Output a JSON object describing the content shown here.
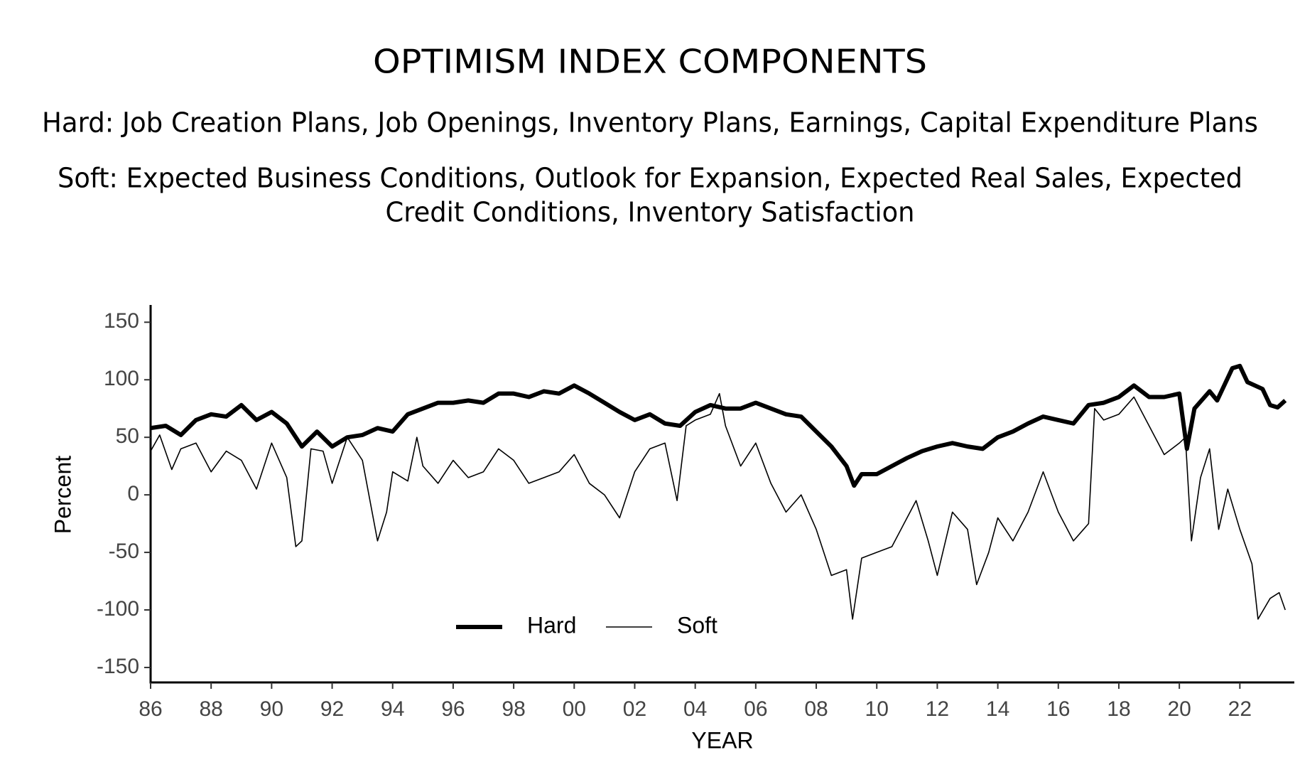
{
  "chart_data": {
    "type": "line",
    "title": "OPTIMISM INDEX COMPONENTS",
    "subtitle": [
      "Hard: Job Creation Plans, Job Openings, Inventory Plans, Earnings, Capital Expenditure Plans",
      "Soft: Expected Business Conditions, Outlook for Expansion, Expected Real Sales, Expected",
      "Credit Conditions, Inventory Satisfaction"
    ],
    "xlabel": "YEAR",
    "ylabel": "Percent",
    "xlim": [
      1986,
      2023.8
    ],
    "ylim": [
      -163,
      165
    ],
    "xticks": [
      {
        "value": 1986,
        "label": "86"
      },
      {
        "value": 1988,
        "label": "88"
      },
      {
        "value": 1990,
        "label": "90"
      },
      {
        "value": 1992,
        "label": "92"
      },
      {
        "value": 1994,
        "label": "94"
      },
      {
        "value": 1996,
        "label": "96"
      },
      {
        "value": 1998,
        "label": "98"
      },
      {
        "value": 2000,
        "label": "00"
      },
      {
        "value": 2002,
        "label": "02"
      },
      {
        "value": 2004,
        "label": "04"
      },
      {
        "value": 2006,
        "label": "06"
      },
      {
        "value": 2008,
        "label": "08"
      },
      {
        "value": 2010,
        "label": "10"
      },
      {
        "value": 2012,
        "label": "12"
      },
      {
        "value": 2014,
        "label": "14"
      },
      {
        "value": 2016,
        "label": "16"
      },
      {
        "value": 2018,
        "label": "18"
      },
      {
        "value": 2020,
        "label": "20"
      },
      {
        "value": 2022,
        "label": "22"
      }
    ],
    "yticks": [
      150,
      100,
      50,
      0,
      -50,
      -100,
      -150
    ],
    "grid": false,
    "legend": "lower center",
    "series": [
      {
        "name": "Hard",
        "color": "#000000",
        "x": [
          1986,
          1986.5,
          1987,
          1987.5,
          1988,
          1988.5,
          1989,
          1989.5,
          1990,
          1990.5,
          1991,
          1991.5,
          1992,
          1992.5,
          1993,
          1993.5,
          1994,
          1994.5,
          1995,
          1995.5,
          1996,
          1996.5,
          1997,
          1997.5,
          1998,
          1998.5,
          1999,
          1999.5,
          2000,
          2000.5,
          2001,
          2001.5,
          2002,
          2002.5,
          2003,
          2003.5,
          2004,
          2004.5,
          2005,
          2005.5,
          2006,
          2006.5,
          2007,
          2007.5,
          2008,
          2008.5,
          2009,
          2009.25,
          2009.5,
          2010,
          2010.5,
          2011,
          2011.5,
          2012,
          2012.5,
          2013,
          2013.5,
          2014,
          2014.5,
          2015,
          2015.5,
          2016,
          2016.5,
          2017,
          2017.5,
          2018,
          2018.5,
          2019,
          2019.5,
          2020,
          2020.25,
          2020.5,
          2021,
          2021.25,
          2021.75,
          2022,
          2022.25,
          2022.75,
          2023,
          2023.25,
          2023.5
        ],
        "values": [
          58,
          60,
          52,
          65,
          70,
          68,
          78,
          65,
          72,
          62,
          42,
          55,
          42,
          50,
          52,
          58,
          55,
          70,
          75,
          80,
          80,
          82,
          80,
          88,
          88,
          85,
          90,
          88,
          95,
          88,
          80,
          72,
          65,
          70,
          62,
          60,
          72,
          78,
          75,
          75,
          80,
          75,
          70,
          68,
          55,
          42,
          25,
          8,
          18,
          18,
          25,
          32,
          38,
          42,
          45,
          42,
          40,
          50,
          55,
          62,
          68,
          65,
          62,
          78,
          80,
          85,
          95,
          85,
          85,
          88,
          40,
          75,
          90,
          82,
          110,
          112,
          98,
          92,
          78,
          76,
          82
        ]
      },
      {
        "name": "Soft",
        "color": "#000000",
        "x": [
          1986,
          1986.3,
          1986.7,
          1987,
          1987.5,
          1988,
          1988.5,
          1989,
          1989.5,
          1990,
          1990.5,
          1990.8,
          1991,
          1991.3,
          1991.7,
          1992,
          1992.5,
          1993,
          1993.5,
          1993.8,
          1994,
          1994.5,
          1994.8,
          1995,
          1995.5,
          1996,
          1996.5,
          1997,
          1997.5,
          1998,
          1998.5,
          1999,
          1999.5,
          2000,
          2000.5,
          2001,
          2001.5,
          2002,
          2002.5,
          2003,
          2003.4,
          2003.7,
          2004,
          2004.5,
          2004.8,
          2005,
          2005.5,
          2006,
          2006.5,
          2007,
          2007.5,
          2008,
          2008.5,
          2009,
          2009.2,
          2009.5,
          2010,
          2010.5,
          2011,
          2011.3,
          2011.7,
          2012,
          2012.5,
          2013,
          2013.3,
          2013.7,
          2014,
          2014.5,
          2015,
          2015.5,
          2016,
          2016.5,
          2017,
          2017.2,
          2017.5,
          2018,
          2018.5,
          2019,
          2019.5,
          2020,
          2020.2,
          2020.4,
          2020.7,
          2021,
          2021.3,
          2021.6,
          2022,
          2022.4,
          2022.6,
          2023,
          2023.3,
          2023.5
        ],
        "values": [
          38,
          52,
          22,
          40,
          45,
          20,
          38,
          30,
          5,
          45,
          15,
          -45,
          -40,
          40,
          38,
          10,
          50,
          30,
          -40,
          -15,
          20,
          12,
          50,
          25,
          10,
          30,
          15,
          20,
          40,
          30,
          10,
          15,
          20,
          35,
          10,
          0,
          -20,
          20,
          40,
          45,
          -5,
          60,
          65,
          70,
          88,
          60,
          25,
          45,
          10,
          -15,
          0,
          -30,
          -70,
          -65,
          -108,
          -55,
          -50,
          -45,
          -20,
          -5,
          -40,
          -70,
          -15,
          -30,
          -78,
          -50,
          -20,
          -40,
          -15,
          20,
          -15,
          -40,
          -25,
          75,
          65,
          70,
          85,
          60,
          35,
          45,
          50,
          -40,
          15,
          40,
          -30,
          5,
          -30,
          -60,
          -108,
          -90,
          -85,
          -100
        ]
      }
    ]
  }
}
